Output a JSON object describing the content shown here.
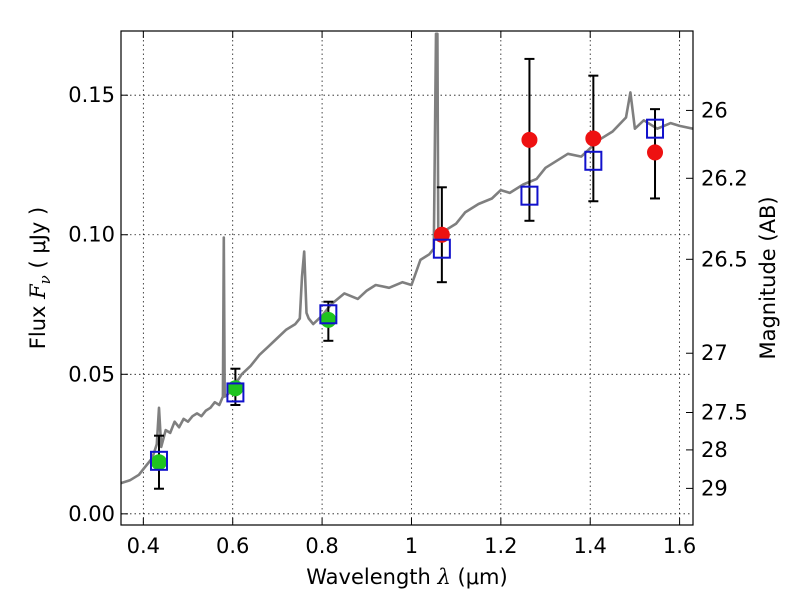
{
  "chart_data": {
    "type": "scatter",
    "xlabel": {
      "prefix": "Wavelength ",
      "symbol": "λ",
      "unit": " (μm)"
    },
    "ylabel": {
      "prefix": "Flux ",
      "symbol": "F",
      "subscript": "ν",
      "unit": " ( μJy )"
    },
    "y2label": "Magnitude (AB)",
    "xlim": [
      0.35,
      1.63
    ],
    "ylim": [
      -0.004,
      0.173
    ],
    "grid": true,
    "x_ticks": [
      {
        "value": 0.4,
        "label": "0.4"
      },
      {
        "value": 0.6,
        "label": "0.6"
      },
      {
        "value": 0.8,
        "label": "0.8"
      },
      {
        "value": 1.0,
        "label": "1"
      },
      {
        "value": 1.2,
        "label": "1.2"
      },
      {
        "value": 1.4,
        "label": "1.4"
      },
      {
        "value": 1.6,
        "label": "1.6"
      }
    ],
    "y_ticks": [
      {
        "value": 0.0,
        "label": "0.00"
      },
      {
        "value": 0.05,
        "label": "0.05"
      },
      {
        "value": 0.1,
        "label": "0.10"
      },
      {
        "value": 0.15,
        "label": "0.15"
      }
    ],
    "y2_ticks": [
      {
        "mag": 26,
        "label": "26"
      },
      {
        "mag": 26.2,
        "label": "26.2"
      },
      {
        "mag": 26.5,
        "label": "26.5"
      },
      {
        "mag": 27,
        "label": "27"
      },
      {
        "mag": 27.5,
        "label": "27.5"
      },
      {
        "mag": 28,
        "label": "28"
      },
      {
        "mag": 29,
        "label": "29"
      }
    ],
    "model_spectrum": {
      "color": "#7f7f7f",
      "x": [
        0.35,
        0.37,
        0.39,
        0.4,
        0.42,
        0.43,
        0.435,
        0.44,
        0.45,
        0.46,
        0.47,
        0.48,
        0.49,
        0.5,
        0.51,
        0.52,
        0.53,
        0.54,
        0.55,
        0.56,
        0.57,
        0.578,
        0.58,
        0.582,
        0.59,
        0.6,
        0.62,
        0.64,
        0.66,
        0.68,
        0.7,
        0.72,
        0.74,
        0.75,
        0.755,
        0.76,
        0.765,
        0.77,
        0.78,
        0.8,
        0.82,
        0.85,
        0.88,
        0.9,
        0.92,
        0.95,
        0.98,
        1.0,
        1.02,
        1.04,
        1.05,
        1.055,
        1.058,
        1.06,
        1.065,
        1.08,
        1.1,
        1.12,
        1.15,
        1.18,
        1.2,
        1.22,
        1.25,
        1.28,
        1.3,
        1.32,
        1.35,
        1.38,
        1.4,
        1.42,
        1.45,
        1.48,
        1.49,
        1.5,
        1.52,
        1.55,
        1.58,
        1.6,
        1.63
      ],
      "y": [
        0.011,
        0.012,
        0.014,
        0.016,
        0.02,
        0.025,
        0.038,
        0.024,
        0.03,
        0.029,
        0.033,
        0.031,
        0.034,
        0.033,
        0.035,
        0.036,
        0.035,
        0.037,
        0.038,
        0.04,
        0.039,
        0.042,
        0.099,
        0.042,
        0.043,
        0.045,
        0.05,
        0.053,
        0.057,
        0.06,
        0.063,
        0.066,
        0.068,
        0.07,
        0.085,
        0.094,
        0.072,
        0.07,
        0.068,
        0.071,
        0.075,
        0.079,
        0.077,
        0.08,
        0.082,
        0.081,
        0.083,
        0.082,
        0.091,
        0.093,
        0.095,
        0.172,
        0.172,
        0.098,
        0.099,
        0.102,
        0.104,
        0.108,
        0.111,
        0.113,
        0.116,
        0.115,
        0.118,
        0.12,
        0.124,
        0.126,
        0.129,
        0.128,
        0.131,
        0.134,
        0.137,
        0.142,
        0.151,
        0.138,
        0.141,
        0.138,
        0.14,
        0.139,
        0.138
      ]
    },
    "series": [
      {
        "marker": "circle",
        "color": "#1fc41f",
        "points": [
          {
            "x": 0.435,
            "y": 0.0185,
            "ylow": 0.009,
            "yhigh": 0.028
          },
          {
            "x": 0.606,
            "y": 0.045,
            "ylow": 0.039,
            "yhigh": 0.052
          },
          {
            "x": 0.814,
            "y": 0.0695,
            "ylow": 0.062,
            "yhigh": 0.076
          }
        ]
      },
      {
        "marker": "circle",
        "color": "#ee1111",
        "points": [
          {
            "x": 1.068,
            "y": 0.1,
            "ylow": 0.083,
            "yhigh": 0.117
          },
          {
            "x": 1.264,
            "y": 0.134,
            "ylow": 0.105,
            "yhigh": 0.163
          },
          {
            "x": 1.407,
            "y": 0.1345,
            "ylow": 0.112,
            "yhigh": 0.157
          },
          {
            "x": 1.545,
            "y": 0.1295,
            "ylow": 0.113,
            "yhigh": 0.145
          }
        ]
      },
      {
        "marker": "square-open",
        "color": "#1111cc",
        "points": [
          {
            "x": 0.435,
            "y": 0.019
          },
          {
            "x": 0.606,
            "y": 0.0435
          },
          {
            "x": 0.814,
            "y": 0.0715
          },
          {
            "x": 1.068,
            "y": 0.095
          },
          {
            "x": 1.264,
            "y": 0.114
          },
          {
            "x": 1.407,
            "y": 0.1265
          },
          {
            "x": 1.545,
            "y": 0.138
          }
        ]
      }
    ]
  }
}
